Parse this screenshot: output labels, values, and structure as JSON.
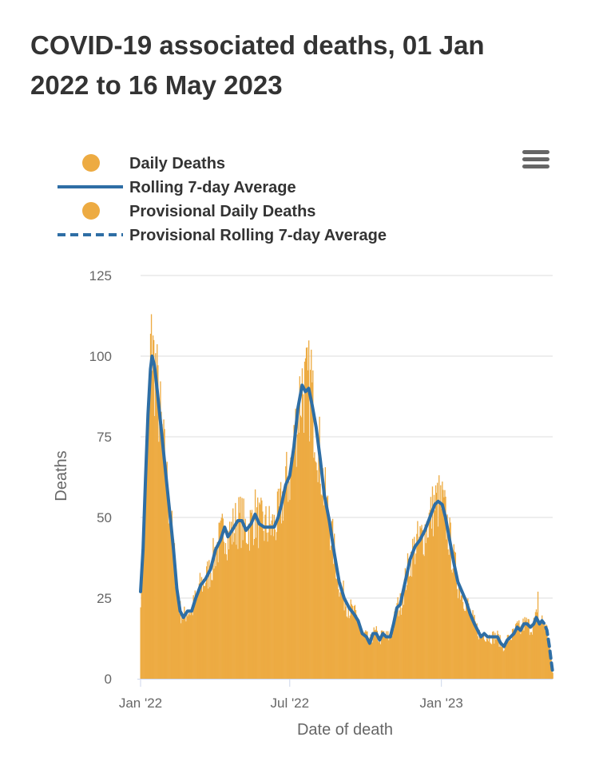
{
  "title_lines": [
    "COVID-19 associated deaths, 01 Jan",
    "2022 to 16 May 2023"
  ],
  "menu": {
    "icon": "hamburger-menu-icon"
  },
  "colors": {
    "bar": "#edab42",
    "line": "#2e6ea5",
    "grid": "#dddddd",
    "axis": "#ccd6eb"
  },
  "chart_data": {
    "type": "bar+line",
    "title": "COVID-19 associated deaths, 01 Jan 2022 to 16 May 2023",
    "xlabel": "Date of death",
    "ylabel": "Deaths",
    "x_start": "2022-01-01",
    "x_end": "2023-05-16",
    "ylim": [
      0,
      125
    ],
    "y_ticks": [
      0,
      25,
      50,
      75,
      100,
      125
    ],
    "x_ticks": [
      {
        "label": "Jan '22",
        "date": "2022-01-01"
      },
      {
        "label": "Jul '22",
        "date": "2022-07-01"
      },
      {
        "label": "Jan '23",
        "date": "2023-01-01"
      }
    ],
    "grid": true,
    "legend": {
      "position": "top-left",
      "items": [
        {
          "label": "Daily Deaths",
          "symbol": "circle"
        },
        {
          "label": "Rolling 7-day Average",
          "symbol": "line"
        },
        {
          "label": "Provisional Daily Deaths",
          "symbol": "circle"
        },
        {
          "label": "Provisional Rolling 7-day Average",
          "symbol": "dashed-line"
        }
      ]
    },
    "provisional_from": "2023-04-30",
    "series": [
      {
        "name": "Daily Deaths",
        "type": "bar",
        "note": "daily values shown as bars; approximated from the rolling average with visible spikes",
        "peaks": [
          {
            "date": "2022-01-14",
            "value": 113
          },
          {
            "date": "2022-07-27",
            "value": 102
          },
          {
            "date": "2022-12-31",
            "value": 60
          },
          {
            "date": "2023-04-28",
            "value": 27
          }
        ]
      },
      {
        "name": "Rolling 7-day Average",
        "type": "line",
        "points": [
          [
            "2022-01-01",
            27
          ],
          [
            "2022-01-04",
            40
          ],
          [
            "2022-01-07",
            62
          ],
          [
            "2022-01-10",
            82
          ],
          [
            "2022-01-13",
            96
          ],
          [
            "2022-01-15",
            100
          ],
          [
            "2022-01-18",
            97
          ],
          [
            "2022-01-21",
            90
          ],
          [
            "2022-01-25",
            80
          ],
          [
            "2022-01-29",
            70
          ],
          [
            "2022-02-02",
            60
          ],
          [
            "2022-02-06",
            50
          ],
          [
            "2022-02-10",
            40
          ],
          [
            "2022-02-14",
            28
          ],
          [
            "2022-02-18",
            21
          ],
          [
            "2022-02-22",
            19
          ],
          [
            "2022-02-27",
            21
          ],
          [
            "2022-03-04",
            21
          ],
          [
            "2022-03-09",
            25
          ],
          [
            "2022-03-15",
            29
          ],
          [
            "2022-03-21",
            31
          ],
          [
            "2022-03-27",
            34
          ],
          [
            "2022-04-02",
            40
          ],
          [
            "2022-04-08",
            43
          ],
          [
            "2022-04-13",
            47
          ],
          [
            "2022-04-17",
            44
          ],
          [
            "2022-04-22",
            46
          ],
          [
            "2022-04-29",
            49
          ],
          [
            "2022-05-04",
            49
          ],
          [
            "2022-05-09",
            46
          ],
          [
            "2022-05-15",
            48
          ],
          [
            "2022-05-20",
            51
          ],
          [
            "2022-05-25",
            48
          ],
          [
            "2022-05-31",
            47
          ],
          [
            "2022-06-06",
            47
          ],
          [
            "2022-06-12",
            47
          ],
          [
            "2022-06-17",
            50
          ],
          [
            "2022-06-21",
            54
          ],
          [
            "2022-06-26",
            60
          ],
          [
            "2022-07-01",
            63
          ],
          [
            "2022-07-06",
            72
          ],
          [
            "2022-07-11",
            84
          ],
          [
            "2022-07-16",
            91
          ],
          [
            "2022-07-20",
            89
          ],
          [
            "2022-07-24",
            90
          ],
          [
            "2022-07-28",
            85
          ],
          [
            "2022-08-02",
            78
          ],
          [
            "2022-08-07",
            68
          ],
          [
            "2022-08-12",
            57
          ],
          [
            "2022-08-18",
            49
          ],
          [
            "2022-08-24",
            39
          ],
          [
            "2022-08-30",
            30
          ],
          [
            "2022-09-05",
            25
          ],
          [
            "2022-09-11",
            22
          ],
          [
            "2022-09-17",
            20
          ],
          [
            "2022-09-22",
            18
          ],
          [
            "2022-09-27",
            14
          ],
          [
            "2022-10-02",
            13
          ],
          [
            "2022-10-06",
            11
          ],
          [
            "2022-10-10",
            14
          ],
          [
            "2022-10-14",
            14
          ],
          [
            "2022-10-18",
            12
          ],
          [
            "2022-10-22",
            14
          ],
          [
            "2022-10-26",
            13
          ],
          [
            "2022-10-31",
            13
          ],
          [
            "2022-11-04",
            17
          ],
          [
            "2022-11-08",
            22
          ],
          [
            "2022-11-12",
            23
          ],
          [
            "2022-11-18",
            30
          ],
          [
            "2022-11-24",
            37
          ],
          [
            "2022-11-30",
            41
          ],
          [
            "2022-12-06",
            43
          ],
          [
            "2022-12-12",
            46
          ],
          [
            "2022-12-18",
            50
          ],
          [
            "2022-12-24",
            54
          ],
          [
            "2022-12-28",
            55
          ],
          [
            "2023-01-02",
            54
          ],
          [
            "2023-01-06",
            50
          ],
          [
            "2023-01-11",
            43
          ],
          [
            "2023-01-16",
            36
          ],
          [
            "2023-01-21",
            30
          ],
          [
            "2023-01-26",
            27
          ],
          [
            "2023-01-31",
            24
          ],
          [
            "2023-02-05",
            20
          ],
          [
            "2023-02-10",
            17
          ],
          [
            "2023-02-14",
            15
          ],
          [
            "2023-02-18",
            13
          ],
          [
            "2023-02-22",
            14
          ],
          [
            "2023-02-26",
            13
          ],
          [
            "2023-03-02",
            13
          ],
          [
            "2023-03-06",
            13
          ],
          [
            "2023-03-10",
            13
          ],
          [
            "2023-03-14",
            11
          ],
          [
            "2023-03-18",
            10
          ],
          [
            "2023-03-22",
            12
          ],
          [
            "2023-03-26",
            13
          ],
          [
            "2023-03-30",
            14
          ],
          [
            "2023-04-03",
            16
          ],
          [
            "2023-04-07",
            15
          ],
          [
            "2023-04-11",
            17
          ],
          [
            "2023-04-15",
            17
          ],
          [
            "2023-04-19",
            16
          ],
          [
            "2023-04-23",
            17
          ],
          [
            "2023-04-26",
            19
          ],
          [
            "2023-04-30",
            17
          ]
        ]
      },
      {
        "name": "Provisional Rolling 7-day Average",
        "type": "dashed-line",
        "points": [
          [
            "2023-04-30",
            17
          ],
          [
            "2023-05-03",
            18
          ],
          [
            "2023-05-06",
            17
          ],
          [
            "2023-05-09",
            15
          ],
          [
            "2023-05-12",
            10
          ],
          [
            "2023-05-14",
            6
          ],
          [
            "2023-05-16",
            2
          ]
        ]
      }
    ]
  }
}
